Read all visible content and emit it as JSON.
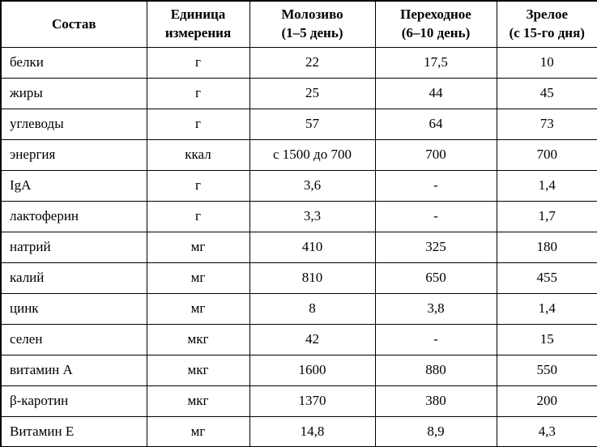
{
  "colors": {
    "background": "#ffffff",
    "border": "#000000",
    "text": "#000000"
  },
  "table": {
    "columns": [
      {
        "label": "Состав"
      },
      {
        "label": "Единица\nизмерения"
      },
      {
        "label": "Молозиво\n(1–5 день)"
      },
      {
        "label": "Переходное\n(6–10 день)"
      },
      {
        "label": "Зрелое\n(с 15-го дня)"
      }
    ],
    "rows": [
      [
        "белки",
        "г",
        "22",
        "17,5",
        "10"
      ],
      [
        "жиры",
        "г",
        "25",
        "44",
        "45"
      ],
      [
        "углеводы",
        "г",
        "57",
        "64",
        "73"
      ],
      [
        "энергия",
        "ккал",
        "с 1500 до 700",
        "700",
        "700"
      ],
      [
        "IgA",
        "г",
        "3,6",
        "-",
        "1,4"
      ],
      [
        "лактоферин",
        "г",
        "3,3",
        "-",
        "1,7"
      ],
      [
        "натрий",
        "мг",
        "410",
        "325",
        "180"
      ],
      [
        "калий",
        "мг",
        "810",
        "650",
        "455"
      ],
      [
        "цинк",
        "мг",
        "8",
        "3,8",
        "1,4"
      ],
      [
        "селен",
        "мкг",
        "42",
        "-",
        "15"
      ],
      [
        "витамин А",
        "мкг",
        "1600",
        "880",
        "550"
      ],
      [
        "β-каротин",
        "мкг",
        "1370",
        "380",
        "200"
      ],
      [
        "Витамин Е",
        "мг",
        "14,8",
        "8,9",
        "4,3"
      ]
    ]
  }
}
